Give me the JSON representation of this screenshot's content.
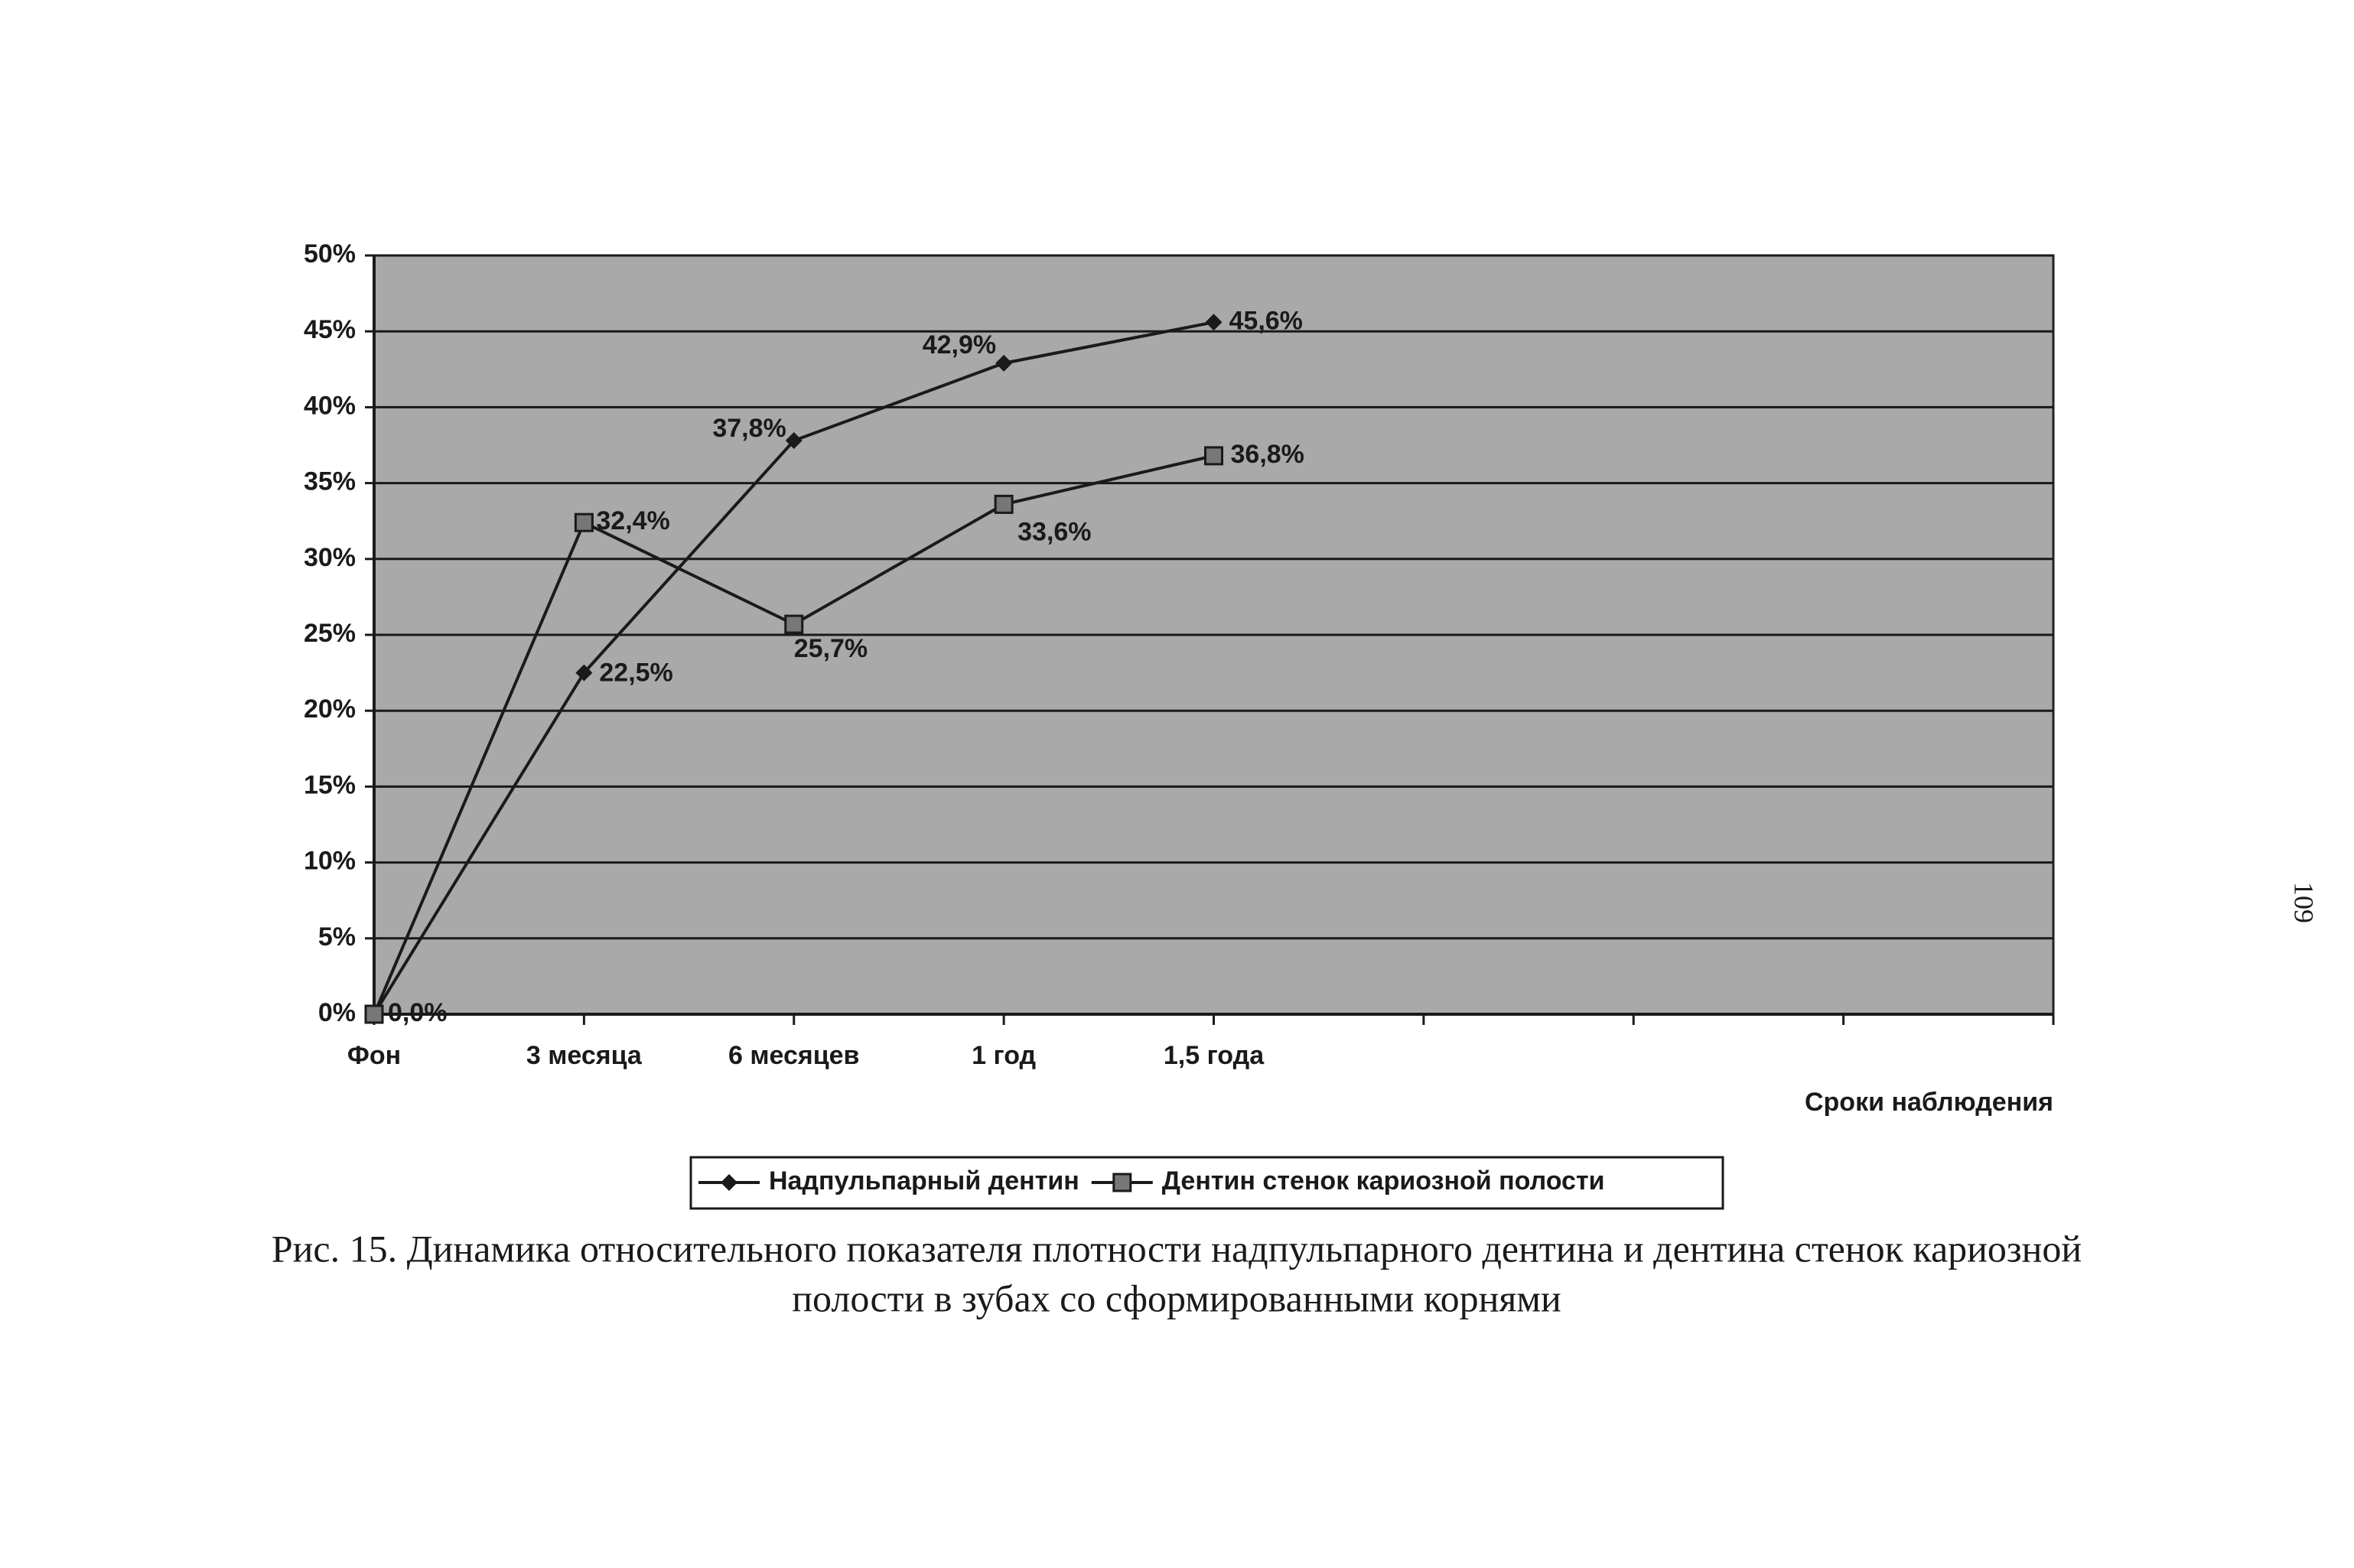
{
  "chart_data": {
    "type": "line",
    "categories": [
      "Фон",
      "3 месяца",
      "6 месяцев",
      "1 год",
      "1,5 года",
      null,
      null,
      null,
      null
    ],
    "series": [
      {
        "name": "Надпульпарный дентин",
        "color": "#1a1a1a",
        "marker": "diamond",
        "values": [
          0,
          22.5,
          37.8,
          42.9,
          45.6,
          null,
          null,
          null,
          null
        ],
        "value_labels": [
          "0,0%",
          "22,5%",
          "37,8%",
          "42,9%",
          "45,6%",
          null,
          null,
          null,
          null
        ]
      },
      {
        "name": "Дентин стенок кариозной полости",
        "color": "#1a1a1a",
        "marker": "square",
        "values": [
          0,
          32.4,
          25.7,
          33.6,
          36.8,
          null,
          null,
          null,
          null
        ],
        "value_labels": [
          null,
          "32,4%",
          "25,7%",
          "33,6%",
          "36,8%",
          null,
          null,
          null,
          null
        ]
      }
    ],
    "x_label": "Сроки наблюдения",
    "ylim": [
      0,
      50
    ],
    "yticks": [
      {
        "value": 0,
        "label": "0%"
      },
      {
        "value": 5,
        "label": "5%"
      },
      {
        "value": 10,
        "label": "10%"
      },
      {
        "value": 15,
        "label": "15%"
      },
      {
        "value": 20,
        "label": "20%"
      },
      {
        "value": 25,
        "label": "25%"
      },
      {
        "value": 30,
        "label": "30%"
      },
      {
        "value": 35,
        "label": "35%"
      },
      {
        "value": 40,
        "label": "40%"
      },
      {
        "value": 45,
        "label": "45%"
      },
      {
        "value": 50,
        "label": "50%"
      }
    ],
    "grid": true,
    "plot_background": "#a9a9a9",
    "legend": "bottom"
  },
  "caption": [
    "Рис. 15. Динамика относительного показателя плотности надпульпарного дентина и дентина стенок кариозной",
    "полости в зубах со сформированными корнями"
  ],
  "page_number": "109"
}
